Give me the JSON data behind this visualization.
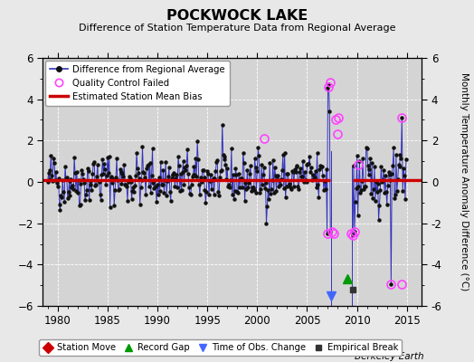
{
  "title": "POCKWOCK LAKE",
  "subtitle": "Difference of Station Temperature Data from Regional Average",
  "ylabel_right": "Monthly Temperature Anomaly Difference (°C)",
  "xlim": [
    1978.5,
    2016.5
  ],
  "ylim": [
    -6,
    6
  ],
  "yticks": [
    -6,
    -4,
    -2,
    0,
    2,
    4,
    6
  ],
  "xticks": [
    1980,
    1985,
    1990,
    1995,
    2000,
    2005,
    2010,
    2015
  ],
  "bias_value": 0.1,
  "bias_start": 1978.5,
  "bias_end": 2007.3,
  "bias2_start": 2009.6,
  "bias2_end": 2016.5,
  "gap_start": 2007.4,
  "gap_end": 2009.5,
  "record_gap_x": 2009.0,
  "record_gap_y": -4.7,
  "empirical_break_x": 2009.58,
  "empirical_break_y": -5.2,
  "obs_change_x": 2007.37,
  "obs_change_y": -5.5,
  "qc_failed_points_x": [
    2000.67,
    2007.0,
    2007.17,
    2007.33,
    2007.5,
    2007.67,
    2007.83,
    2008.0,
    2008.17,
    2009.42,
    2009.58,
    2009.75,
    2010.08,
    2013.42,
    2014.5
  ],
  "qc_failed_points_y": [
    2.1,
    -2.5,
    4.6,
    4.8,
    -2.4,
    -2.5,
    3.0,
    2.3,
    3.1,
    -2.5,
    -2.6,
    -2.4,
    0.85,
    -4.95,
    3.1
  ],
  "background_color": "#e8e8e8",
  "plot_bg_color": "#d4d4d4",
  "line_color": "#3333bb",
  "bias_color": "#cc0000",
  "qc_color": "#ff44ff",
  "marker_color": "#111111",
  "grid_color": "#bbbbbb",
  "seed": 42
}
